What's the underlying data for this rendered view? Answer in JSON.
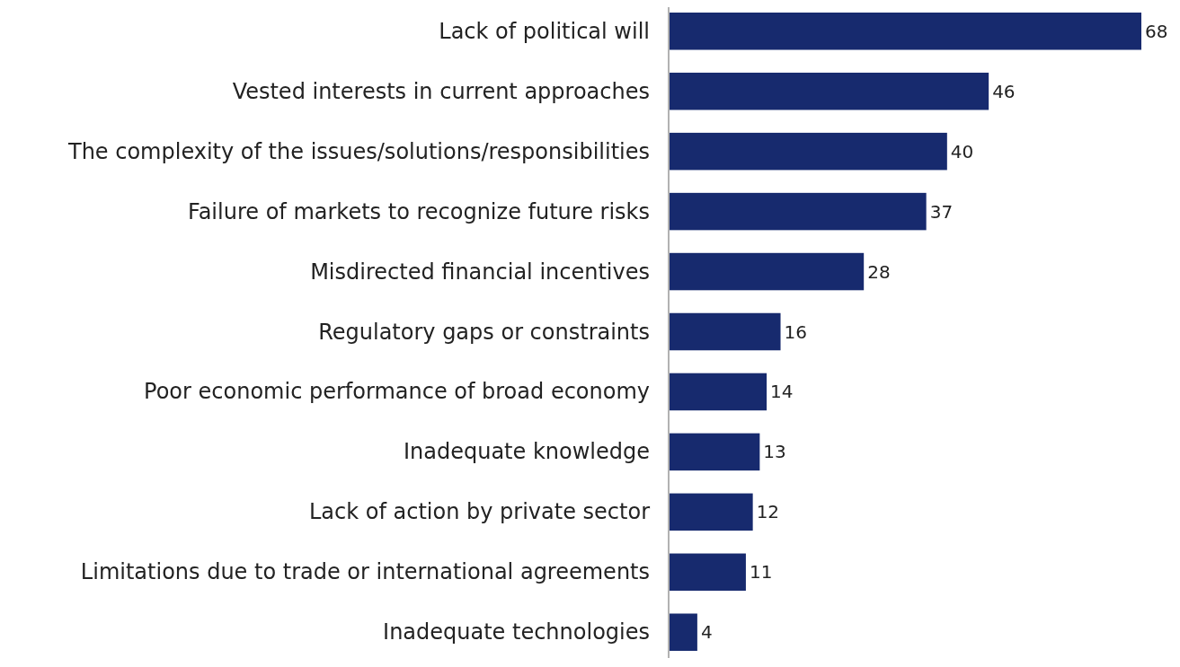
{
  "chart_data": {
    "type": "bar",
    "orientation": "horizontal",
    "categories": [
      "Lack of political will",
      "Vested interests in current approaches",
      "The complexity of the issues/solutions/responsibilities",
      "Failure of markets to recognize future risks",
      "Misdirected financial incentives",
      "Regulatory gaps or constraints",
      "Poor economic performance of broad economy",
      "Inadequate knowledge",
      "Lack of action by private sector",
      "Limitations due to trade or international agreements",
      "Inadequate technologies"
    ],
    "values": [
      68,
      46,
      40,
      37,
      28,
      16,
      14,
      13,
      12,
      11,
      4
    ],
    "color": "#172a6e",
    "data_labels": true
  }
}
